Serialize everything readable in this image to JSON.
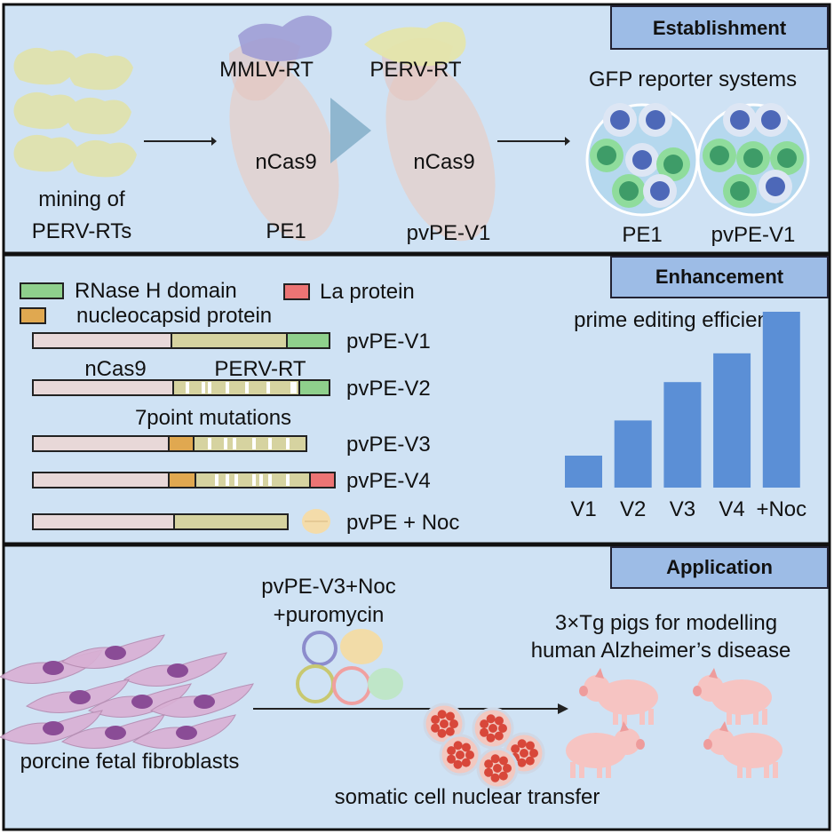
{
  "colors": {
    "panel": "#cfe2f4",
    "header": "#9dbce6",
    "bar": "#5b8fd6",
    "ncas9": "#e8d8d8",
    "pervrt": "#d6d3a0",
    "rnaseh": "#8fd08c",
    "nucleocapsid": "#e0a850",
    "la": "#ec7474"
  },
  "establishment": {
    "header": "Establishment",
    "mining_line1": "mining of",
    "mining_line2": "PERV-RTs",
    "mmlv_rt": "MMLV-RT",
    "perv_rt": "PERV-RT",
    "ncas9_a": "nCas9",
    "ncas9_b": "nCas9",
    "pe1": "PE1",
    "pvpe_v1": "pvPE-V1",
    "gfp_title": "GFP reporter systems",
    "dish_pe1": "PE1",
    "dish_pvpe_v1": "pvPE-V1"
  },
  "enhancement": {
    "header": "Enhancement",
    "legend": {
      "rnaseh": "RNase H domain",
      "la": "La protein",
      "nucleocapsid": "nucleocapsid protein"
    },
    "label_ncas9": "nCas9",
    "label_pervrt": "PERV-RT",
    "label_mutations": "7point mutations",
    "constructs": [
      "pvPE-V1",
      "pvPE-V2",
      "pvPE-V3",
      "pvPE-V4",
      "pvPE + Noc"
    ],
    "chart_title": "prime editing efficiency"
  },
  "chart_data": {
    "type": "bar",
    "title": "prime editing efficiency",
    "categories": [
      "V1",
      "V2",
      "V3",
      "V4",
      "+Noc"
    ],
    "values": [
      1,
      2.1,
      3.3,
      4.2,
      5.5
    ],
    "xlabel": "",
    "ylabel": ""
  },
  "application": {
    "header": "Application",
    "reagents_line1": "pvPE-V3+Noc",
    "reagents_line2": "+puromycin",
    "pigs_line1": "3×Tg pigs for modelling",
    "pigs_line2": "human Alzheimer’s disease",
    "fibroblasts": "porcine fetal fibroblasts",
    "scnt": "somatic cell nuclear transfer"
  }
}
